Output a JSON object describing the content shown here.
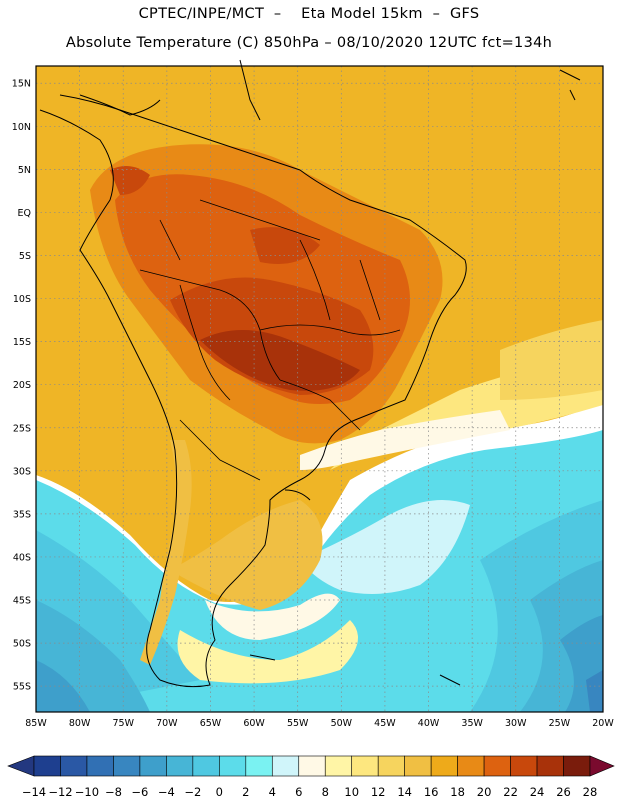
{
  "header": {
    "line1": "CPTEC/INPE/MCT  –    Eta Model 15km  –  GFS",
    "line2": "Absolute Temperature (C) 850hPa – 08/10/2020 12UTC fct=134h"
  },
  "map": {
    "lon_range": [
      -85,
      -20
    ],
    "lat_range": [
      -58,
      17
    ],
    "lon_ticks": [
      "85W",
      "80W",
      "75W",
      "70W",
      "65W",
      "60W",
      "55W",
      "50W",
      "45W",
      "40W",
      "35W",
      "30W",
      "25W",
      "20W"
    ],
    "lat_ticks": [
      "15N",
      "10N",
      "5N",
      "EQ",
      "5S",
      "10S",
      "15S",
      "20S",
      "25S",
      "30S",
      "35S",
      "40S",
      "45S",
      "50S",
      "55S"
    ],
    "gridlines": true
  },
  "colorbar": {
    "labels": [
      "-14",
      "-12",
      "-10",
      "-8",
      "-6",
      "-4",
      "-2",
      "0",
      "2",
      "4",
      "6",
      "8",
      "10",
      "12",
      "14",
      "16",
      "18",
      "20",
      "22",
      "24",
      "26",
      "28"
    ],
    "colors": [
      "#1e3f8f",
      "#2a58a5",
      "#3170b4",
      "#3886c0",
      "#3e9fcb",
      "#47b5d6",
      "#4fc8e1",
      "#5cdcea",
      "#7af2f2",
      "#d0f5fa",
      "#fff9e6",
      "#fff5a6",
      "#fde77f",
      "#f6d45e",
      "#f0bf43",
      "#eeaa1a",
      "#e88a16",
      "#dd6210",
      "#c8480c",
      "#a8320a",
      "#7a1c0c"
    ],
    "min_arrow": "#233880",
    "max_arrow": "#7a0a2e"
  }
}
